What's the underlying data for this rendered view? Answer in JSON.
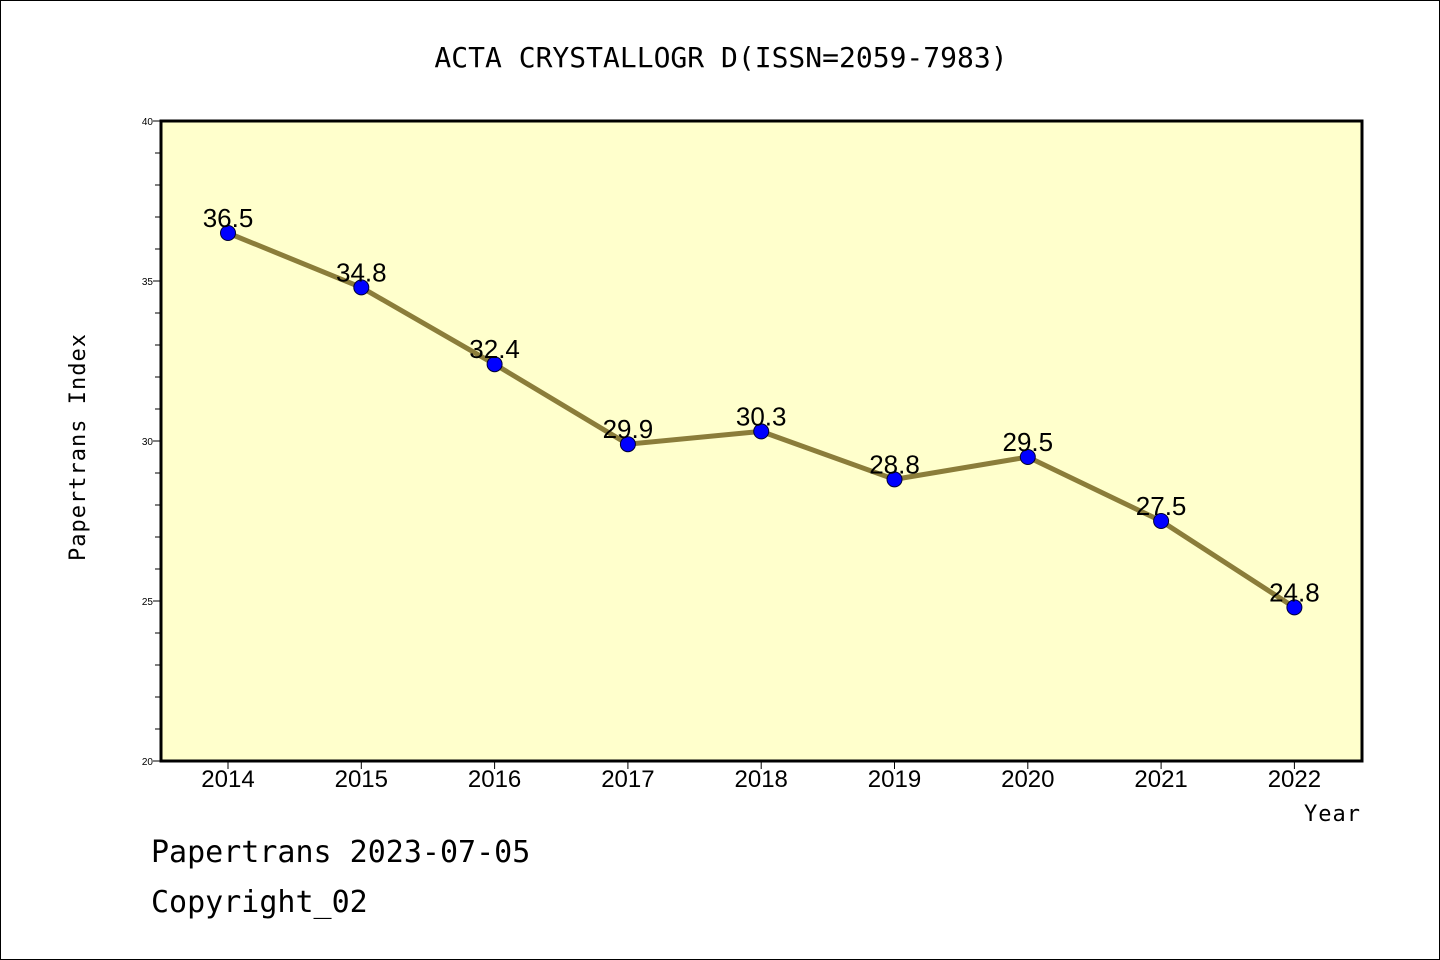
{
  "chart_data": {
    "type": "line",
    "title": "ACTA CRYSTALLOGR D(ISSN=2059-7983)",
    "xlabel": "Year",
    "ylabel": "Papertrans Index",
    "categories": [
      "2014",
      "2015",
      "2016",
      "2017",
      "2018",
      "2019",
      "2020",
      "2021",
      "2022"
    ],
    "series": [
      {
        "values": [
          36.5,
          34.8,
          32.4,
          29.9,
          30.3,
          28.8,
          29.5,
          27.5,
          24.8
        ]
      }
    ],
    "data_labels": [
      "36.5",
      "34.8",
      "32.4",
      "29.9",
      "30.3",
      "28.8",
      "29.5",
      "27.5",
      "24.8"
    ],
    "ylim": [
      20,
      40
    ],
    "y_ticks": [
      20,
      25,
      30,
      35,
      40
    ],
    "y_tick_labels": [
      "20",
      "25",
      "30",
      "35",
      "40"
    ],
    "grid": false,
    "colors": {
      "plot_background": "#ffffcc",
      "line": "#8b7d3a",
      "marker": "#0000ff",
      "axis": "#000000"
    }
  },
  "footer": {
    "line1": "Papertrans 2023-07-05",
    "line2": "Copyright_02"
  }
}
